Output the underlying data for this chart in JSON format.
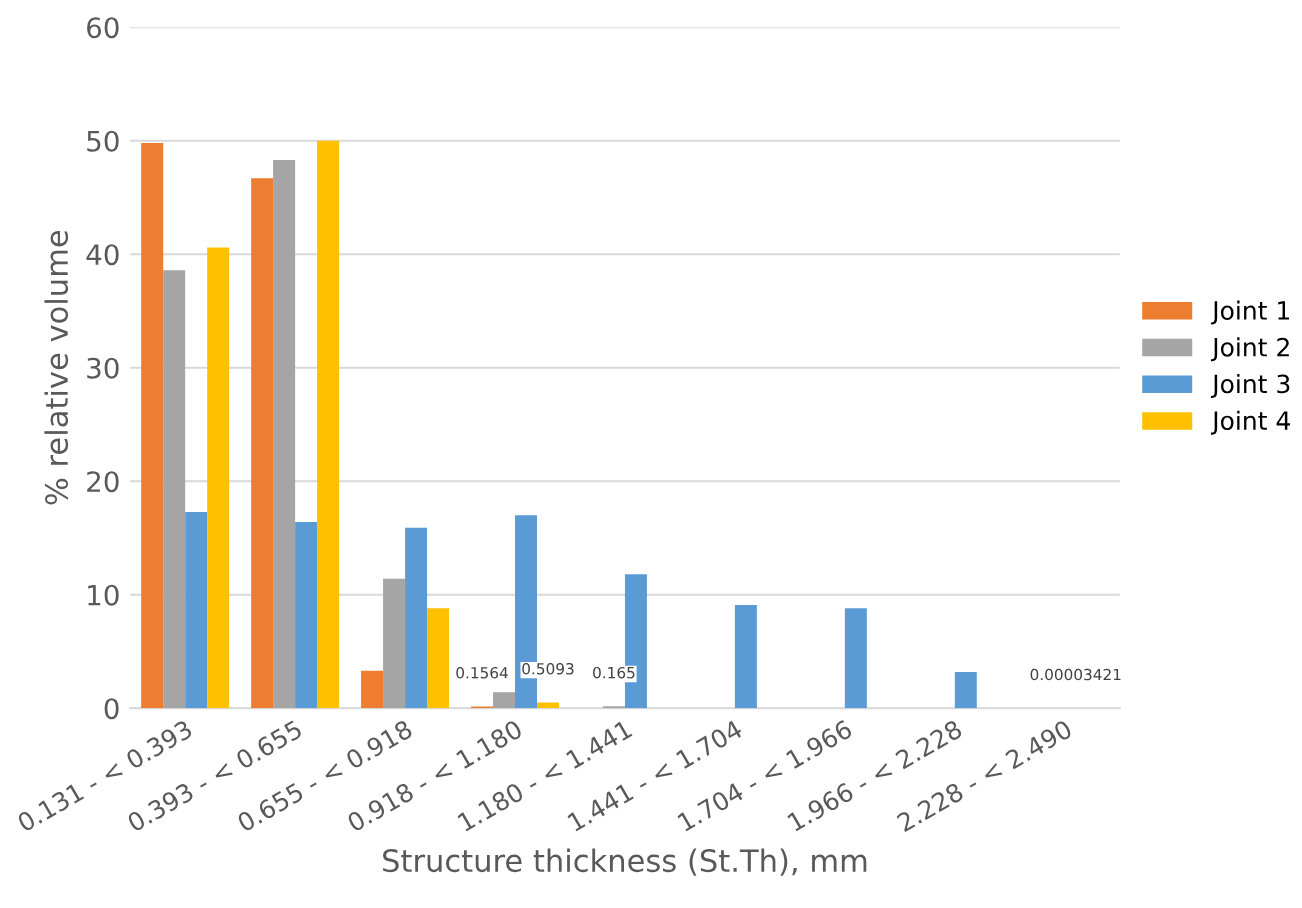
{
  "chart_data": {
    "type": "bar",
    "xlabel": "Structure thickness (St.Th), mm",
    "ylabel": "% relative volume",
    "categories": [
      "0.131 - < 0.393",
      "0.393 - < 0.655",
      "0.655 - < 0.918",
      "0.918 - < 1.180",
      "1.180 - < 1.441",
      "1.441 - < 1.704",
      "1.704 - < 1.966",
      "1.966 - < 2.228",
      "2.228 - < 2.490"
    ],
    "series": [
      {
        "name": "Joint 1",
        "color": "#ed7d31",
        "values": [
          49.8,
          46.7,
          3.3,
          0.1564,
          null,
          null,
          null,
          null,
          null
        ],
        "value_labels": [
          null,
          null,
          null,
          "0.1564",
          null,
          null,
          null,
          null,
          null
        ]
      },
      {
        "name": "Joint 2",
        "color": "#a5a5a5",
        "values": [
          38.6,
          48.3,
          11.4,
          1.4,
          0.165,
          null,
          null,
          null,
          null
        ],
        "value_labels": [
          null,
          null,
          null,
          null,
          "0.165",
          null,
          null,
          null,
          null
        ]
      },
      {
        "name": "Joint 3",
        "color": "#5b9bd5",
        "values": [
          17.3,
          16.4,
          15.9,
          17.0,
          11.8,
          9.1,
          8.8,
          3.2,
          3.421e-05
        ],
        "value_labels": [
          null,
          null,
          null,
          null,
          null,
          null,
          null,
          null,
          "0.00003421"
        ]
      },
      {
        "name": "Joint 4",
        "color": "#ffc000",
        "values": [
          40.6,
          50.0,
          8.8,
          0.5093,
          null,
          null,
          null,
          null,
          null
        ],
        "value_labels": [
          null,
          null,
          null,
          "0.5093",
          null,
          null,
          null,
          null,
          null
        ]
      }
    ],
    "ylim": [
      0,
      60
    ],
    "yticks": [
      0,
      10,
      20,
      30,
      40,
      50,
      60
    ],
    "grid": "y",
    "legend": "right"
  }
}
